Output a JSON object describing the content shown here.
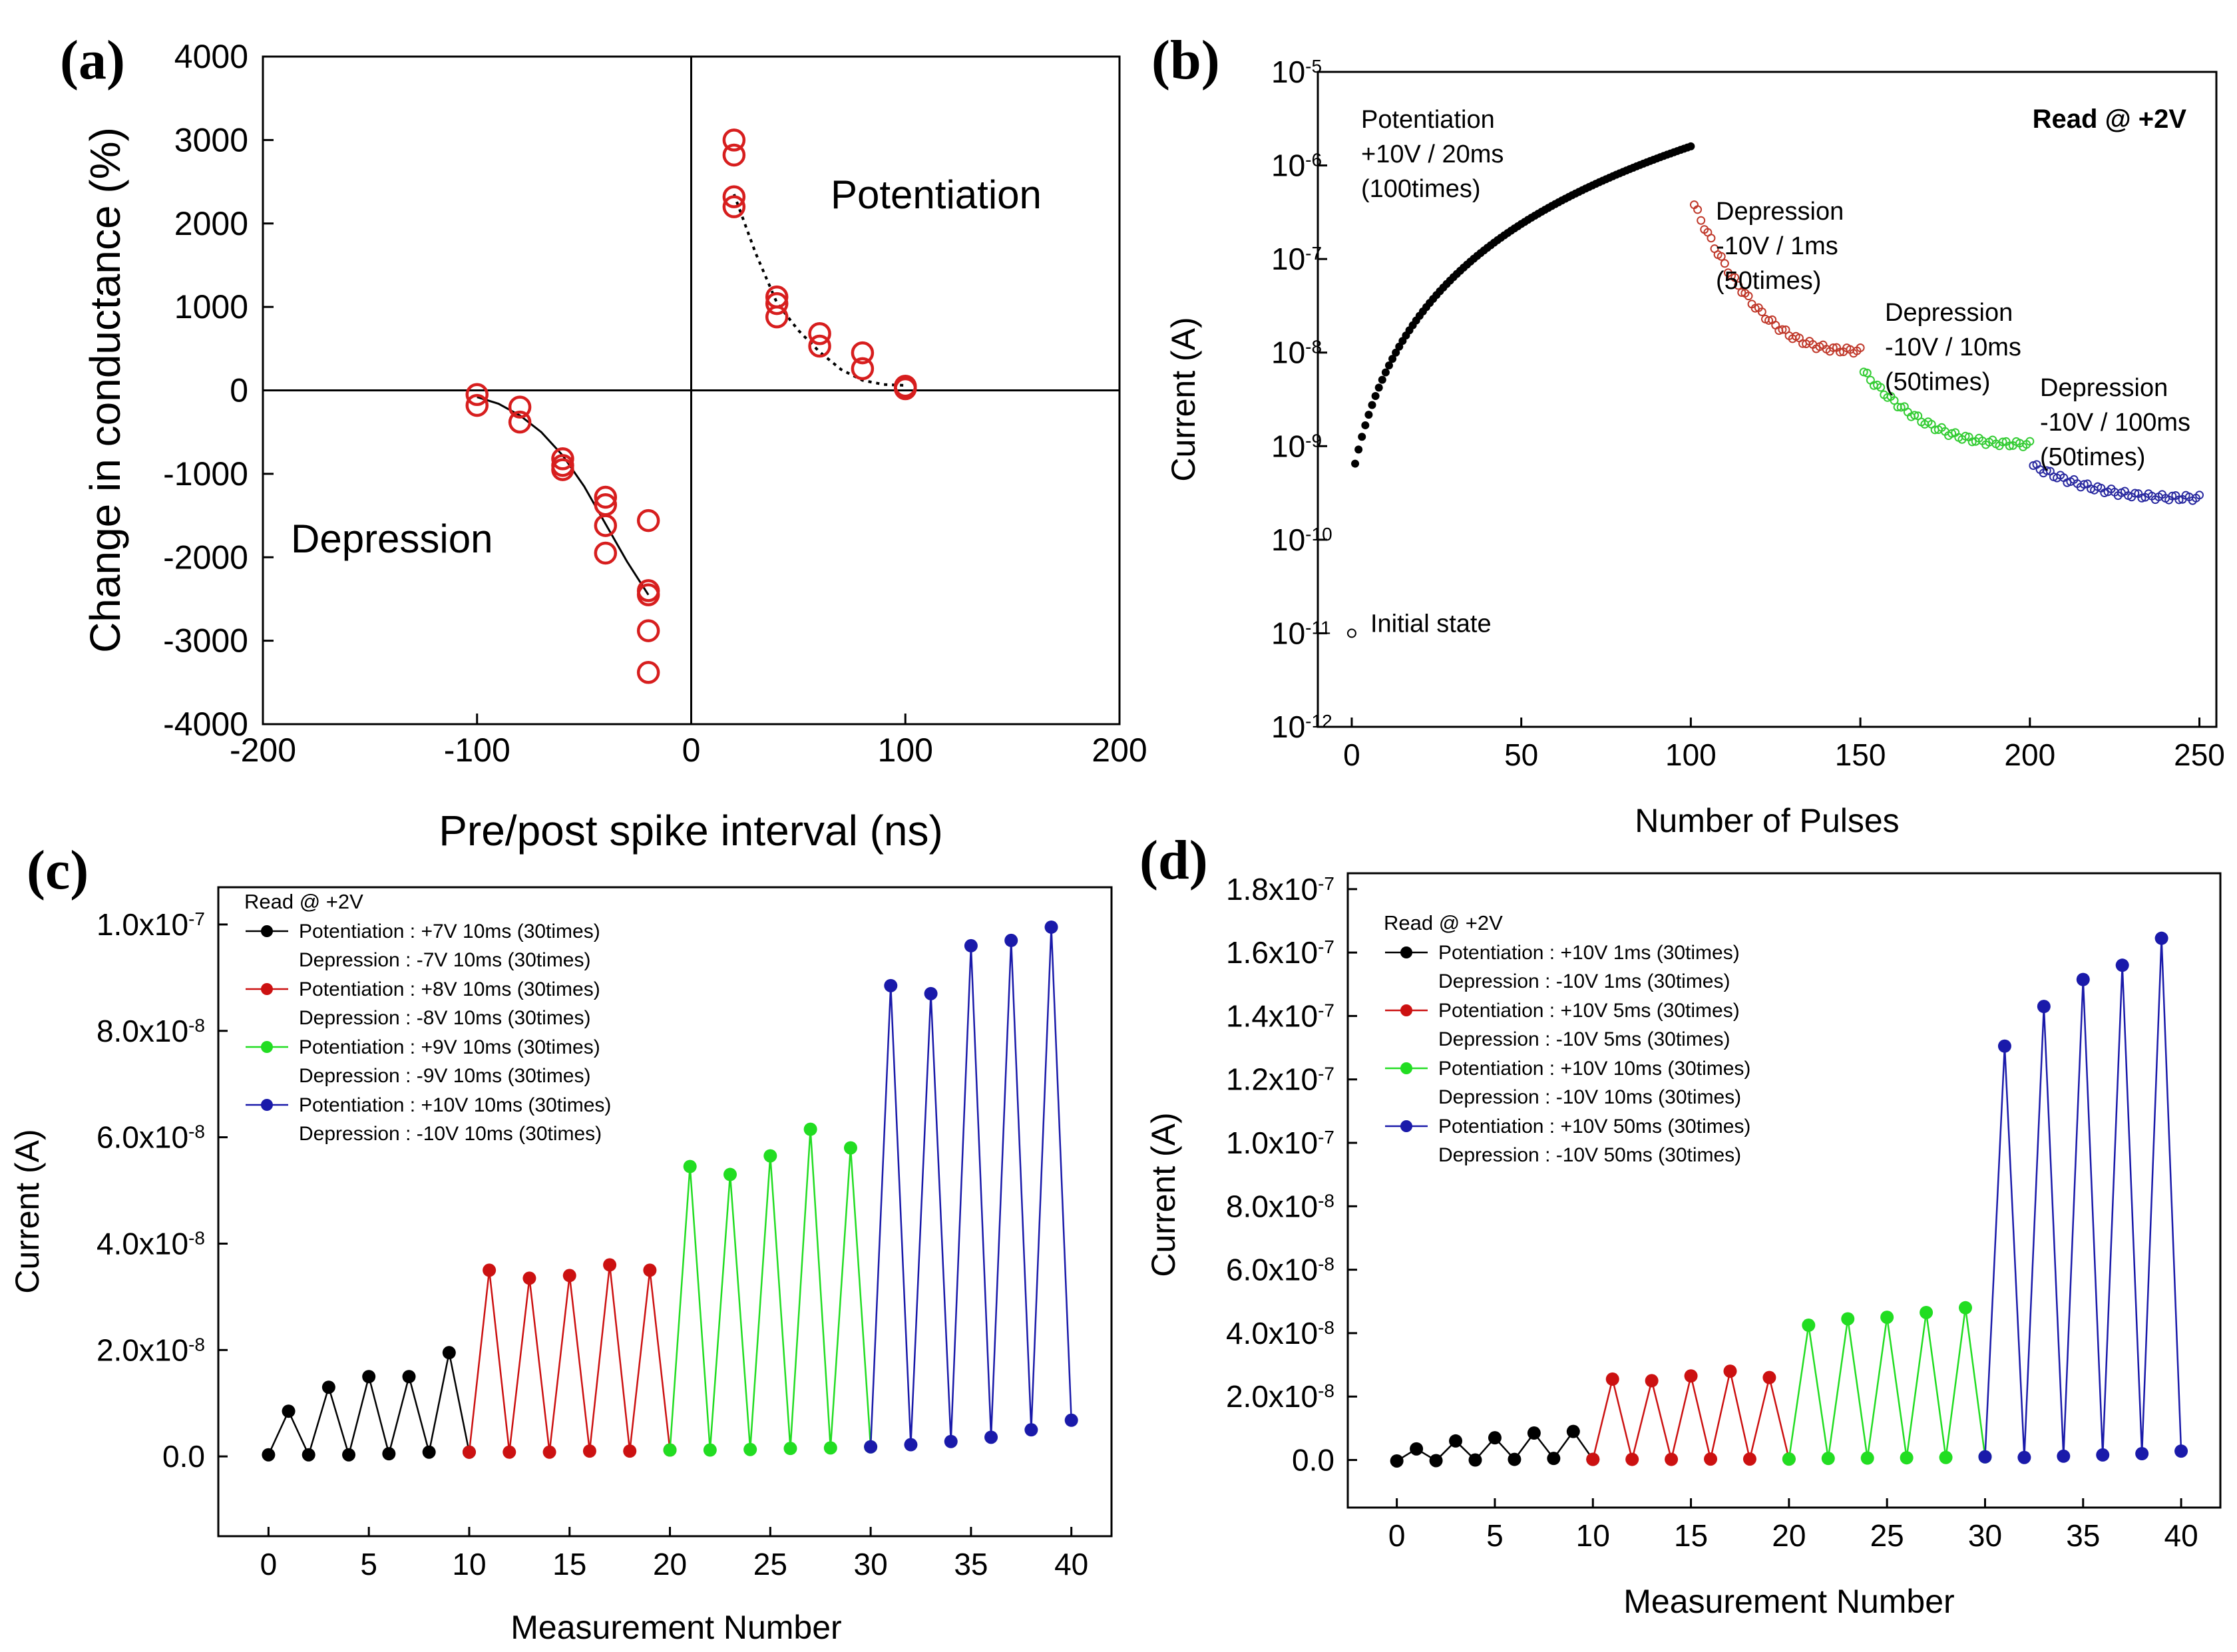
{
  "chart_data": [
    {
      "id": "a",
      "type": "scatter",
      "panel_label": "(a)",
      "xlabel": "Pre/post spike interval (ns)",
      "ylabel": "Change in conductance (%)",
      "xlim": [
        -200,
        200
      ],
      "ylim": [
        -4000,
        4000
      ],
      "xticks": [
        -200,
        -100,
        0,
        100,
        200
      ],
      "yticks": [
        -4000,
        -3000,
        -2000,
        -1000,
        0,
        1000,
        2000,
        3000,
        4000
      ],
      "annotations": [
        "Potentiation",
        "Depression"
      ],
      "marker_color": "#d71e1e",
      "points": [
        {
          "x": -100,
          "y": -50
        },
        {
          "x": -100,
          "y": -180
        },
        {
          "x": -80,
          "y": -200
        },
        {
          "x": -80,
          "y": -380
        },
        {
          "x": -60,
          "y": -820
        },
        {
          "x": -60,
          "y": -900
        },
        {
          "x": -60,
          "y": -950
        },
        {
          "x": -40,
          "y": -1280
        },
        {
          "x": -40,
          "y": -1370
        },
        {
          "x": -40,
          "y": -1620
        },
        {
          "x": -40,
          "y": -1950
        },
        {
          "x": -20,
          "y": -1560
        },
        {
          "x": -20,
          "y": -2400
        },
        {
          "x": -20,
          "y": -2450
        },
        {
          "x": -20,
          "y": -2880
        },
        {
          "x": -20,
          "y": -3380
        },
        {
          "x": 20,
          "y": 3000
        },
        {
          "x": 20,
          "y": 2820
        },
        {
          "x": 20,
          "y": 2320
        },
        {
          "x": 20,
          "y": 2200
        },
        {
          "x": 40,
          "y": 1120
        },
        {
          "x": 40,
          "y": 1040
        },
        {
          "x": 40,
          "y": 880
        },
        {
          "x": 60,
          "y": 680
        },
        {
          "x": 60,
          "y": 530
        },
        {
          "x": 80,
          "y": 450
        },
        {
          "x": 80,
          "y": 260
        },
        {
          "x": 100,
          "y": 50
        },
        {
          "x": 100,
          "y": 20
        }
      ],
      "fit_potentiation": [
        [
          20,
          2350
        ],
        [
          30,
          1650
        ],
        [
          40,
          1050
        ],
        [
          50,
          720
        ],
        [
          60,
          460
        ],
        [
          70,
          250
        ],
        [
          80,
          120
        ],
        [
          90,
          70
        ],
        [
          100,
          60
        ]
      ],
      "fit_depression": [
        [
          -100,
          -80
        ],
        [
          -90,
          -160
        ],
        [
          -80,
          -300
        ],
        [
          -70,
          -500
        ],
        [
          -60,
          -780
        ],
        [
          -50,
          -1150
        ],
        [
          -40,
          -1600
        ],
        [
          -30,
          -2050
        ],
        [
          -20,
          -2450
        ]
      ]
    },
    {
      "id": "b",
      "type": "scatter",
      "panel_label": "(b)",
      "xlabel": "Number of Pulses",
      "ylabel": "Current (A)",
      "xlim": [
        -10,
        255
      ],
      "ylim_log10": [
        -12,
        -5
      ],
      "xticks": [
        0,
        50,
        100,
        150,
        200,
        250
      ],
      "ytick_exponents": [
        -12,
        -11,
        -10,
        -9,
        -8,
        -7,
        -6,
        -5
      ],
      "ytick_base": "10",
      "read_label": "Read @ +2V",
      "initial_state": {
        "label": "Initial state",
        "x": 0,
        "y": 1e-11
      },
      "series": [
        {
          "name": "Potentiation",
          "lines": [
            "Potentiation",
            "+10V / 20ms",
            "(100times)"
          ],
          "color": "#000000",
          "filled": true,
          "x_range": [
            1,
            100
          ],
          "y_start": 6.5e-10,
          "y_end": 1.6e-06
        },
        {
          "name": "Depression -10V / 1ms",
          "lines": [
            "Depression",
            "-10V / 1ms",
            "(50times)"
          ],
          "color": "#c0392b",
          "filled": false,
          "x_range": [
            101,
            150
          ],
          "y_start": 3.8e-07,
          "y_end": 1.05e-08
        },
        {
          "name": "Depression -10V / 10ms",
          "lines": [
            "Depression",
            "-10V / 10ms",
            "(50times)"
          ],
          "color": "#33cc33",
          "filled": false,
          "x_range": [
            151,
            200
          ],
          "y_start": 6.2e-09,
          "y_end": 1.05e-09
        },
        {
          "name": "Depression -10V / 100ms",
          "lines": [
            "Depression",
            "-10V / 100ms",
            "(50times)"
          ],
          "color": "#2a2aa0",
          "filled": false,
          "x_range": [
            201,
            250
          ],
          "y_start": 6.2e-10,
          "y_end": 2.8e-10
        }
      ]
    },
    {
      "id": "c",
      "type": "line",
      "panel_label": "(c)",
      "xlabel": "Measurement Number",
      "ylabel": "Current (A)",
      "xlim": [
        -2.5,
        42
      ],
      "ylim": [
        -1.5e-08,
        1.07e-07
      ],
      "xticks": [
        0,
        5,
        10,
        15,
        20,
        25,
        30,
        35,
        40
      ],
      "yticks": [
        {
          "value": 0,
          "mant": "0.0",
          "exp": ""
        },
        {
          "value": 2e-08,
          "mant": "2.0x10",
          "exp": "-8"
        },
        {
          "value": 4e-08,
          "mant": "4.0x10",
          "exp": "-8"
        },
        {
          "value": 6e-08,
          "mant": "6.0x10",
          "exp": "-8"
        },
        {
          "value": 8e-08,
          "mant": "8.0x10",
          "exp": "-8"
        },
        {
          "value": 1e-07,
          "mant": "1.0x10",
          "exp": "-7"
        }
      ],
      "read_label": "Read @ +2V",
      "legend": [
        {
          "color": "#000000",
          "potentiation": "Potentiation : +7V 10ms (30times)",
          "depression": "Depression : -7V 10ms (30times)"
        },
        {
          "color": "#cc1111",
          "potentiation": "Potentiation : +8V 10ms (30times)",
          "depression": "Depression : -8V 10ms (30times)"
        },
        {
          "color": "#22dd22",
          "potentiation": "Potentiation : +9V 10ms (30times)",
          "depression": "Depression : -9V 10ms (30times)"
        },
        {
          "color": "#1a1aaa",
          "potentiation": "Potentiation : +10V 10ms (30times)",
          "depression": "Depression : -10V 10ms (30times)"
        }
      ],
      "series": [
        {
          "name": "+7V/-7V 10ms",
          "color": "#000000",
          "x": [
            0,
            1,
            2,
            3,
            4,
            5,
            6,
            7,
            8,
            9,
            10
          ],
          "y": [
            3e-10,
            8.5e-09,
            3e-10,
            1.3e-08,
            3e-10,
            1.5e-08,
            5e-10,
            1.5e-08,
            8e-10,
            1.95e-08,
            8e-10
          ]
        },
        {
          "name": "+8V/-8V 10ms",
          "color": "#cc1111",
          "x": [
            10,
            11,
            12,
            13,
            14,
            15,
            16,
            17,
            18,
            19,
            20
          ],
          "y": [
            8e-10,
            3.5e-08,
            8e-10,
            3.35e-08,
            8e-10,
            3.4e-08,
            1e-09,
            3.6e-08,
            1e-09,
            3.5e-08,
            1.2e-09
          ]
        },
        {
          "name": "+9V/-9V 10ms",
          "color": "#22dd22",
          "x": [
            20,
            21,
            22,
            23,
            24,
            25,
            26,
            27,
            28,
            29,
            30
          ],
          "y": [
            1.2e-09,
            5.45e-08,
            1.2e-09,
            5.3e-08,
            1.3e-09,
            5.65e-08,
            1.5e-09,
            6.15e-08,
            1.6e-09,
            5.8e-08,
            1.8e-09
          ]
        },
        {
          "name": "+10V/-10V 10ms",
          "color": "#1a1aaa",
          "x": [
            30,
            31,
            32,
            33,
            34,
            35,
            36,
            37,
            38,
            39,
            40
          ],
          "y": [
            1.8e-09,
            8.85e-08,
            2.2e-09,
            8.7e-08,
            2.8e-09,
            9.6e-08,
            3.6e-09,
            9.7e-08,
            5e-09,
            9.95e-08,
            6.8e-09
          ]
        }
      ]
    },
    {
      "id": "d",
      "type": "line",
      "panel_label": "(d)",
      "xlabel": "Measurement Number",
      "ylabel": "Current (A)",
      "xlim": [
        -2.5,
        42
      ],
      "ylim": [
        -1.5e-08,
        1.85e-07
      ],
      "xticks": [
        0,
        5,
        10,
        15,
        20,
        25,
        30,
        35,
        40
      ],
      "yticks": [
        {
          "value": 0,
          "mant": "0.0",
          "exp": ""
        },
        {
          "value": 2e-08,
          "mant": "2.0x10",
          "exp": "-8"
        },
        {
          "value": 4e-08,
          "mant": "4.0x10",
          "exp": "-8"
        },
        {
          "value": 6e-08,
          "mant": "6.0x10",
          "exp": "-8"
        },
        {
          "value": 8e-08,
          "mant": "8.0x10",
          "exp": "-8"
        },
        {
          "value": 1e-07,
          "mant": "1.0x10",
          "exp": "-7"
        },
        {
          "value": 1.2e-07,
          "mant": "1.2x10",
          "exp": "-7"
        },
        {
          "value": 1.4e-07,
          "mant": "1.4x10",
          "exp": "-7"
        },
        {
          "value": 1.6e-07,
          "mant": "1.6x10",
          "exp": "-7"
        },
        {
          "value": 1.8e-07,
          "mant": "1.8x10",
          "exp": "-7"
        }
      ],
      "read_label": "Read @ +2V",
      "legend": [
        {
          "color": "#000000",
          "potentiation": "Potentiation : +10V 1ms (30times)",
          "depression": "Depression : -10V 1ms (30times)"
        },
        {
          "color": "#cc1111",
          "potentiation": "Potentiation : +10V 5ms (30times)",
          "depression": "Depression : -10V 5ms (30times)"
        },
        {
          "color": "#22dd22",
          "potentiation": "Potentiation : +10V 10ms (30times)",
          "depression": "Depression : -10V 10ms (30times)"
        },
        {
          "color": "#1a1aaa",
          "potentiation": "Potentiation : +10V 50ms (30times)",
          "depression": "Depression : -10V 50ms (30times)"
        }
      ],
      "series": [
        {
          "name": "+10V/-10V 1ms",
          "color": "#000000",
          "x": [
            0,
            1,
            2,
            3,
            4,
            5,
            6,
            7,
            8,
            9,
            10
          ],
          "y": [
            -3e-10,
            3.5e-09,
            -2e-10,
            6e-09,
            0,
            7e-09,
            2e-10,
            8.5e-09,
            5e-10,
            9e-09,
            2e-10
          ]
        },
        {
          "name": "+10V/-10V 5ms",
          "color": "#cc1111",
          "x": [
            10,
            11,
            12,
            13,
            14,
            15,
            16,
            17,
            18,
            19,
            20
          ],
          "y": [
            2e-10,
            2.55e-08,
            2e-10,
            2.5e-08,
            2e-10,
            2.65e-08,
            3e-10,
            2.8e-08,
            3e-10,
            2.6e-08,
            3e-10
          ]
        },
        {
          "name": "+10V/-10V 10ms",
          "color": "#22dd22",
          "x": [
            20,
            21,
            22,
            23,
            24,
            25,
            26,
            27,
            28,
            29,
            30
          ],
          "y": [
            3e-10,
            4.25e-08,
            5e-10,
            4.45e-08,
            6e-10,
            4.5e-08,
            7e-10,
            4.65e-08,
            8e-10,
            4.8e-08,
            1e-09
          ]
        },
        {
          "name": "+10V/-10V 50ms",
          "color": "#1a1aaa",
          "x": [
            30,
            31,
            32,
            33,
            34,
            35,
            36,
            37,
            38,
            39,
            40
          ],
          "y": [
            1e-09,
            1.305e-07,
            8e-10,
            1.43e-07,
            1.2e-09,
            1.515e-07,
            1.6e-09,
            1.56e-07,
            2e-09,
            1.645e-07,
            2.8e-09
          ]
        }
      ]
    }
  ]
}
